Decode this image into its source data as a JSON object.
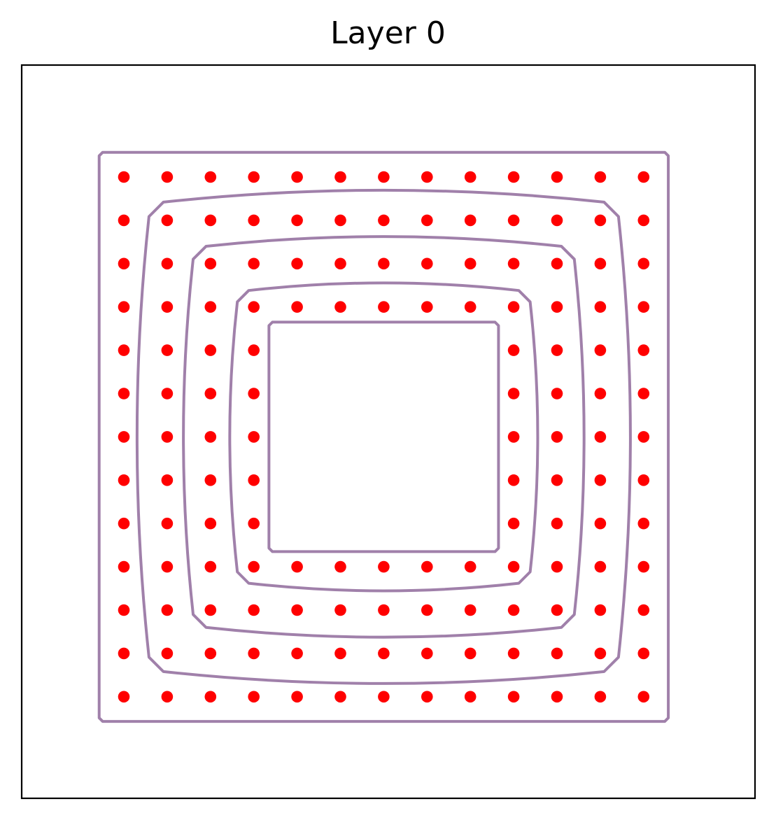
{
  "title": "Layer 0",
  "colors": {
    "contour": "#a080aa",
    "point": "#ff0000",
    "frame": "#000000",
    "background": "#ffffff"
  },
  "grid": {
    "columns": 13,
    "rows": 13,
    "x": [
      0,
      1,
      2,
      3,
      4,
      5,
      6,
      7,
      8,
      9,
      10,
      11,
      12
    ],
    "y": [
      0,
      1,
      2,
      3,
      4,
      5,
      6,
      7,
      8,
      9,
      10,
      11,
      12
    ],
    "empty_block": {
      "col_range": [
        4,
        8
      ],
      "row_range": [
        4,
        8
      ]
    }
  },
  "contours": [
    {
      "name": "contour-ring-1",
      "half_width": 6.57,
      "bulge": 0.0
    },
    {
      "name": "contour-ring-2",
      "half_width": 5.42,
      "bulge": 0.55
    },
    {
      "name": "contour-ring-3",
      "half_width": 4.4,
      "bulge": 0.45
    },
    {
      "name": "contour-ring-4",
      "half_width": 3.38,
      "bulge": 0.35
    },
    {
      "name": "contour-ring-5",
      "half_width": 2.65,
      "bulge": 0.0
    }
  ]
}
